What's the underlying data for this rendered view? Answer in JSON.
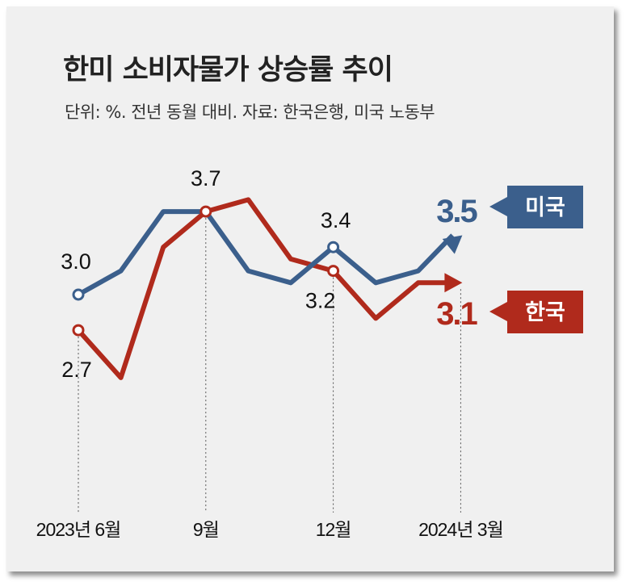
{
  "title": "한미 소비자물가 상승률 추이",
  "subtitle": "단위: %. 전년 동월 대비.  자료: 한국은행, 미국 노동부",
  "chart_data": {
    "type": "line",
    "title": "한미 소비자물가 상승률 추이",
    "ylabel": "%",
    "x": [
      "2023-06",
      "2023-07",
      "2023-08",
      "2023-09",
      "2023-10",
      "2023-11",
      "2023-12",
      "2024-01",
      "2024-02",
      "2024-03"
    ],
    "tick_labels": [
      {
        "index": 0,
        "label": "2023년 6월"
      },
      {
        "index": 3,
        "label": "9월"
      },
      {
        "index": 6,
        "label": "12월"
      },
      {
        "index": 9,
        "label": "2024년 3월"
      }
    ],
    "ylim": [
      2.0,
      4.0
    ],
    "grid": false,
    "series": [
      {
        "name": "미국",
        "color": "#3b5f8c",
        "values": [
          3.0,
          3.2,
          3.7,
          3.7,
          3.2,
          3.1,
          3.4,
          3.1,
          3.2,
          3.5
        ]
      },
      {
        "name": "한국",
        "color": "#b02a1c",
        "values": [
          2.7,
          2.3,
          3.4,
          3.7,
          3.8,
          3.3,
          3.2,
          2.8,
          3.1,
          3.1
        ]
      }
    ],
    "annotations": [
      {
        "series": "미국",
        "index": 0,
        "label": "3.0"
      },
      {
        "series": "한국",
        "index": 0,
        "label": "2.7"
      },
      {
        "series": "한국",
        "index": 3,
        "label": "3.7"
      },
      {
        "series": "미국",
        "index": 6,
        "label": "3.4"
      },
      {
        "series": "한국",
        "index": 6,
        "label": "3.2"
      }
    ],
    "end_labels": [
      {
        "series": "미국",
        "label": "3.5"
      },
      {
        "series": "한국",
        "label": "3.1"
      }
    ]
  }
}
